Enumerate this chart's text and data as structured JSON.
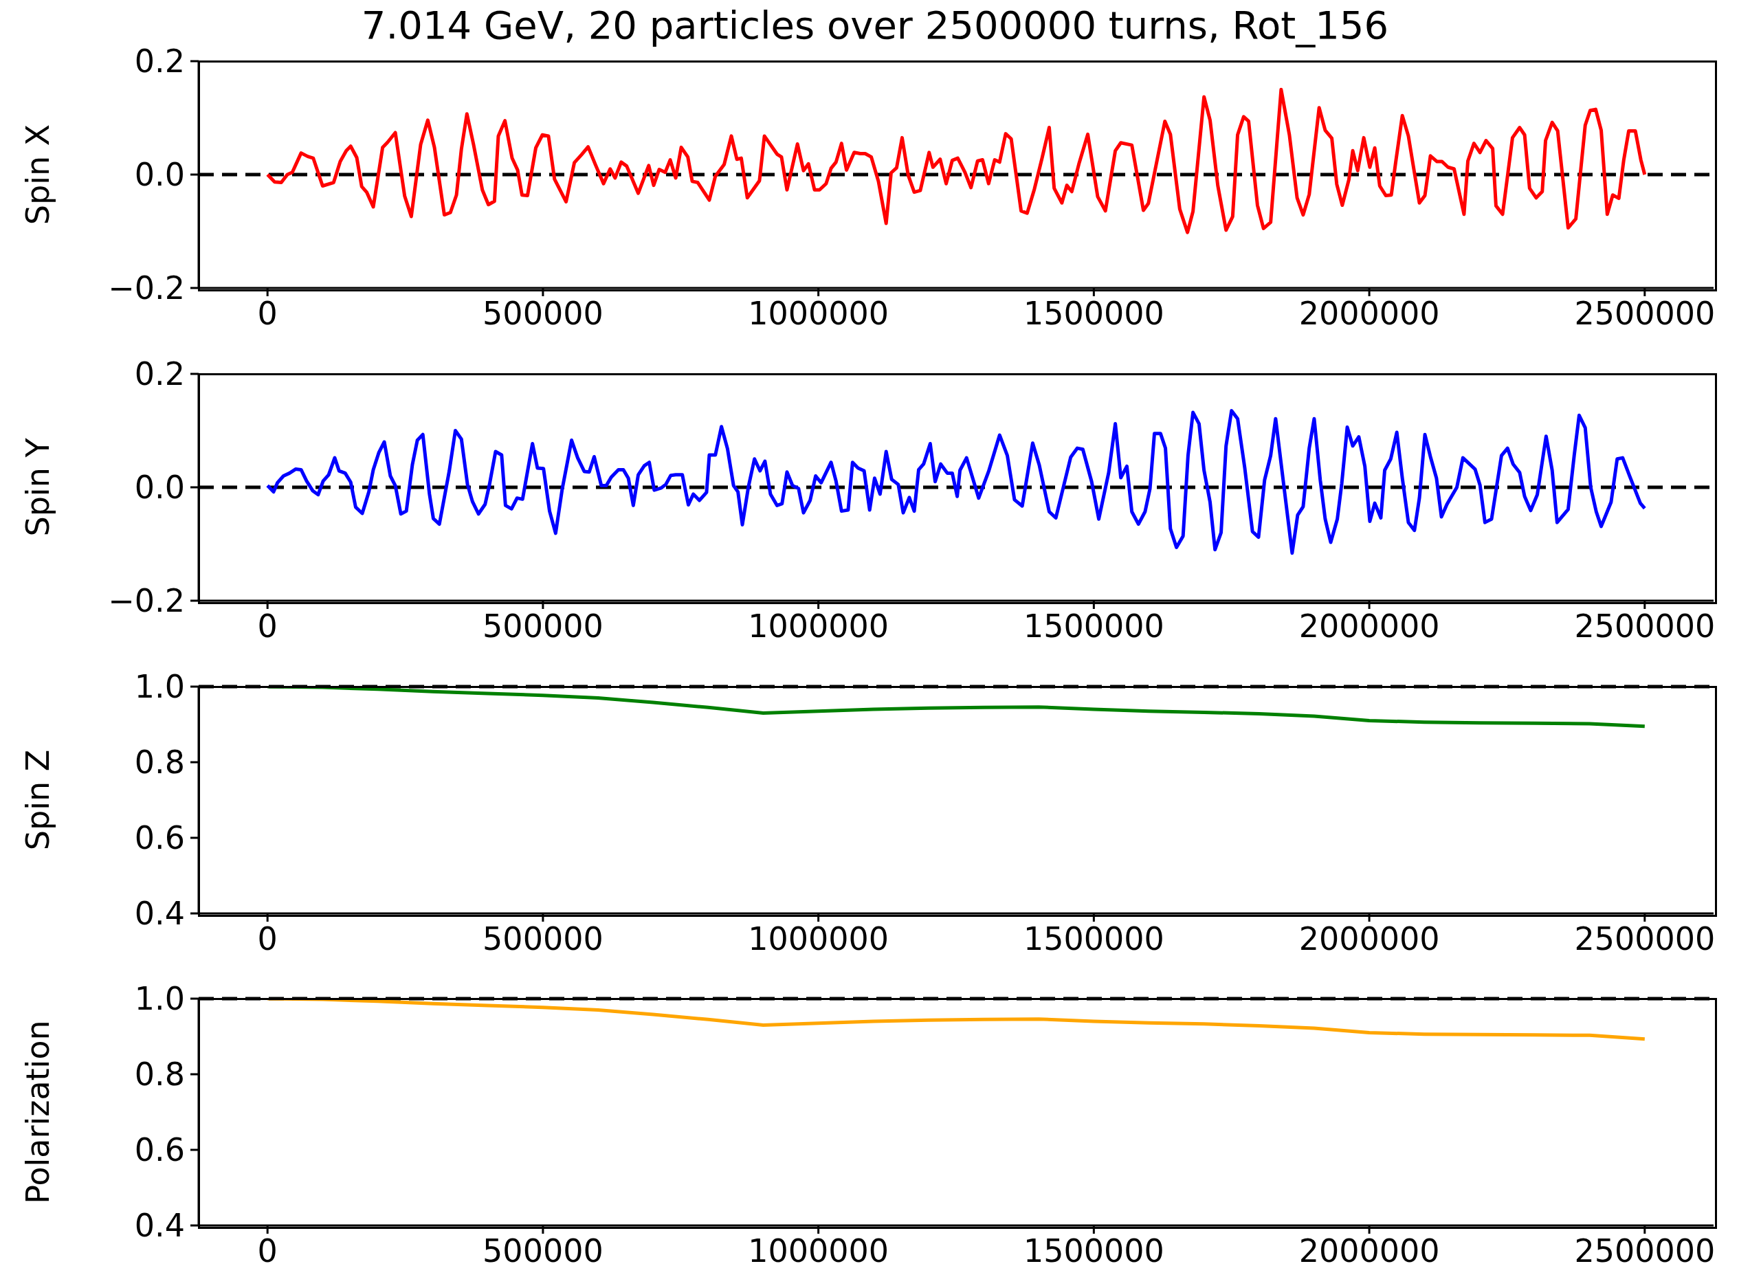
{
  "chart_data": [
    {
      "type": "line",
      "title": "7.014 GeV, 20 particles over 2500000 turns, Rot_156",
      "ylabel": "Spin X",
      "xlim": [
        -125000,
        2625000
      ],
      "xticks": [
        0,
        500000,
        1000000,
        1500000,
        2000000,
        2500000
      ],
      "ylim": [
        -0.2,
        0.2
      ],
      "yticks": [
        {
          "value": -0.2,
          "label": "−0.2"
        },
        {
          "value": 0,
          "label": "0.0"
        },
        {
          "value": 0.2,
          "label": "0.2"
        }
      ],
      "ref_lines": [
        {
          "axis": "y",
          "value": 0,
          "color": "#000000",
          "line_style": "dashed"
        }
      ],
      "series": [
        {
          "color": "#ff0000",
          "x": [
            0,
            13000,
            25000,
            36000,
            45000,
            61000,
            73000,
            83000,
            100000,
            120000,
            132000,
            143000,
            151000,
            162000,
            171000,
            180000,
            192000,
            209000,
            218000,
            232000,
            249000,
            261000,
            278000,
            291000,
            303000,
            321000,
            332000,
            343000,
            352000,
            362000,
            374000,
            390000,
            401000,
            412000,
            419000,
            431000,
            444000,
            454000,
            462000,
            472000,
            487000,
            499000,
            510000,
            521000,
            542000,
            557000,
            570000,
            582000,
            595000,
            610000,
            622000,
            631000,
            642000,
            652000,
            673000,
            692000,
            701000,
            711000,
            722000,
            731000,
            741000,
            751000,
            763000,
            771000,
            781000,
            802000,
            813000,
            829000,
            842000,
            852000,
            860000,
            871000,
            893000,
            902000,
            925000,
            933000,
            943000,
            962000,
            973000,
            982000,
            993000,
            1002000,
            1014000,
            1023000,
            1032000,
            1042000,
            1051000,
            1065000,
            1076000,
            1085000,
            1096000,
            1109000,
            1123000,
            1132000,
            1142000,
            1152000,
            1163000,
            1174000,
            1185000,
            1201000,
            1208000,
            1221000,
            1232000,
            1243000,
            1253000,
            1266000,
            1277000,
            1289000,
            1298000,
            1309000,
            1320000,
            1329000,
            1340000,
            1350000,
            1368000,
            1379000,
            1392000,
            1406000,
            1419000,
            1428000,
            1442000,
            1451000,
            1460000,
            1473000,
            1489000,
            1507000,
            1521000,
            1539000,
            1549000,
            1569000,
            1590000,
            1599000,
            1629000,
            1639000,
            1656000,
            1670000,
            1680000,
            1700000,
            1711000,
            1725000,
            1740000,
            1752000,
            1761000,
            1772000,
            1781000,
            1797000,
            1808000,
            1821000,
            1840000,
            1855000,
            1869000,
            1880000,
            1891000,
            1909000,
            1920000,
            1932000,
            1941000,
            1951000,
            1963000,
            1970000,
            1979000,
            1990000,
            2001000,
            2010000,
            2019000,
            2030000,
            2040000,
            2048000,
            2060000,
            2071000,
            2091000,
            2101000,
            2111000,
            2123000,
            2132000,
            2143000,
            2154000,
            2172000,
            2179000,
            2190000,
            2201000,
            2212000,
            2224000,
            2230000,
            2242000,
            2260000,
            2273000,
            2282000,
            2291000,
            2303000,
            2314000,
            2320000,
            2332000,
            2342000,
            2361000,
            2375000,
            2392000,
            2401000,
            2411000,
            2421000,
            2432000,
            2442000,
            2453000,
            2462000,
            2471000,
            2483000,
            2493000,
            2500000
          ],
          "values": [
            0,
            -0.013,
            -0.014,
            0,
            0.004,
            0.038,
            0.032,
            0.029,
            -0.02,
            -0.014,
            0.023,
            0.042,
            0.05,
            0.03,
            -0.021,
            -0.031,
            -0.057,
            0.048,
            0.057,
            0.074,
            -0.038,
            -0.074,
            0.053,
            0.096,
            0.048,
            -0.071,
            -0.067,
            -0.036,
            0.045,
            0.107,
            0.053,
            -0.027,
            -0.053,
            -0.047,
            0.068,
            0.095,
            0.029,
            0.008,
            -0.036,
            -0.037,
            0.047,
            0.07,
            0.068,
            -0.008,
            -0.048,
            0.021,
            0.035,
            0.049,
            0.018,
            -0.016,
            0.01,
            -0.006,
            0.022,
            0.015,
            -0.033,
            0.016,
            -0.019,
            0.009,
            0.004,
            0.026,
            -0.006,
            0.048,
            0.031,
            -0.012,
            -0.014,
            -0.045,
            -0.003,
            0.018,
            0.068,
            0.027,
            0.029,
            -0.041,
            -0.011,
            0.068,
            0.036,
            0.031,
            -0.027,
            0.054,
            0.007,
            0.019,
            -0.027,
            -0.027,
            -0.016,
            0.011,
            0.022,
            0.055,
            0.008,
            0.039,
            0.037,
            0.037,
            0.031,
            -0.012,
            -0.086,
            0.003,
            0.012,
            0.065,
            -0.001,
            -0.031,
            -0.028,
            0.039,
            0.013,
            0.027,
            -0.016,
            0.025,
            0.029,
            0.004,
            -0.023,
            0.024,
            0.026,
            -0.016,
            0.026,
            0.022,
            0.072,
            0.063,
            -0.064,
            -0.068,
            -0.026,
            0.029,
            0.083,
            -0.024,
            -0.05,
            -0.019,
            -0.03,
            0.019,
            0.071,
            -0.039,
            -0.064,
            0.042,
            0.056,
            0.052,
            -0.063,
            -0.051,
            0.094,
            0.071,
            -0.061,
            -0.102,
            -0.065,
            0.137,
            0.096,
            -0.019,
            -0.098,
            -0.074,
            0.07,
            0.102,
            0.094,
            -0.054,
            -0.095,
            -0.084,
            0.15,
            0.07,
            -0.041,
            -0.071,
            -0.035,
            0.118,
            0.078,
            0.064,
            -0.017,
            -0.054,
            -0.009,
            0.042,
            0.007,
            0.065,
            0.013,
            0.047,
            -0.02,
            -0.037,
            -0.036,
            0.022,
            0.104,
            0.068,
            -0.05,
            -0.037,
            0.033,
            0.023,
            0.023,
            0.013,
            0.01,
            -0.07,
            0.024,
            0.055,
            0.039,
            0.06,
            0.046,
            -0.055,
            -0.07,
            0.065,
            0.083,
            0.07,
            -0.024,
            -0.041,
            -0.03,
            0.06,
            0.092,
            0.077,
            -0.094,
            -0.078,
            0.087,
            0.113,
            0.115,
            0.078,
            -0.07,
            -0.036,
            -0.042,
            0.026,
            0.077,
            0.077,
            0.026,
            0
          ]
        }
      ]
    },
    {
      "type": "line",
      "ylabel": "Spin Y",
      "xlim": [
        -125000,
        2625000
      ],
      "xticks": [
        0,
        500000,
        1000000,
        1500000,
        2000000,
        2500000
      ],
      "ylim": [
        -0.2,
        0.2
      ],
      "yticks": [
        {
          "value": -0.2,
          "label": "−0.2"
        },
        {
          "value": 0,
          "label": "0.0"
        },
        {
          "value": 0.2,
          "label": "0.2"
        }
      ],
      "ref_lines": [
        {
          "axis": "y",
          "value": 0,
          "color": "#000000",
          "line_style": "dashed"
        }
      ],
      "series": [
        {
          "color": "#0000ff",
          "x": [
            0,
            11000,
            18000,
            29000,
            40000,
            51000,
            61000,
            71000,
            82000,
            92000,
            101000,
            111000,
            122000,
            130000,
            141000,
            151000,
            160000,
            172000,
            184000,
            192000,
            202000,
            212000,
            223000,
            232000,
            242000,
            252000,
            263000,
            272000,
            282000,
            294000,
            301000,
            312000,
            330000,
            341000,
            352000,
            363000,
            372000,
            383000,
            395000,
            403000,
            414000,
            425000,
            432000,
            443000,
            453000,
            463000,
            481000,
            490000,
            501000,
            512000,
            523000,
            535000,
            552000,
            563000,
            575000,
            584000,
            593000,
            606000,
            615000,
            624000,
            637000,
            646000,
            655000,
            664000,
            673000,
            684000,
            693000,
            702000,
            715000,
            723000,
            732000,
            741000,
            753000,
            764000,
            773000,
            784000,
            797000,
            802000,
            813000,
            824000,
            835000,
            846000,
            854000,
            862000,
            873000,
            884000,
            894000,
            903000,
            913000,
            925000,
            934000,
            943000,
            953000,
            964000,
            973000,
            985000,
            995000,
            1005000,
            1023000,
            1032000,
            1042000,
            1054000,
            1062000,
            1072000,
            1083000,
            1093000,
            1102000,
            1112000,
            1123000,
            1133000,
            1145000,
            1154000,
            1165000,
            1174000,
            1182000,
            1191000,
            1203000,
            1212000,
            1222000,
            1234000,
            1243000,
            1252000,
            1257000,
            1269000,
            1291000,
            1309000,
            1329000,
            1343000,
            1356000,
            1370000,
            1389000,
            1401000,
            1419000,
            1431000,
            1458000,
            1470000,
            1480000,
            1496000,
            1509000,
            1527000,
            1539000,
            1549000,
            1560000,
            1569000,
            1581000,
            1593000,
            1602000,
            1610000,
            1621000,
            1630000,
            1639000,
            1650000,
            1662000,
            1671000,
            1680000,
            1691000,
            1700000,
            1711000,
            1720000,
            1731000,
            1740000,
            1750000,
            1761000,
            1774000,
            1788000,
            1799000,
            1810000,
            1821000,
            1830000,
            1844000,
            1860000,
            1870000,
            1880000,
            1891000,
            1900000,
            1911000,
            1920000,
            1930000,
            1942000,
            1950000,
            1960000,
            1970000,
            1981000,
            1992000,
            2001000,
            2010000,
            2021000,
            2028000,
            2039000,
            2050000,
            2060000,
            2071000,
            2082000,
            2091000,
            2101000,
            2111000,
            2122000,
            2131000,
            2141000,
            2159000,
            2170000,
            2192000,
            2201000,
            2210000,
            2222000,
            2240000,
            2251000,
            2261000,
            2273000,
            2282000,
            2293000,
            2305000,
            2321000,
            2332000,
            2341000,
            2361000,
            2372000,
            2381000,
            2392000,
            2402000,
            2412000,
            2421000,
            2439000,
            2450000,
            2460000,
            2473000,
            2492000,
            2500000
          ],
          "values": [
            0.003,
            -0.008,
            0.008,
            0.02,
            0.025,
            0.032,
            0.031,
            0.011,
            -0.006,
            -0.013,
            0.011,
            0.022,
            0.052,
            0.029,
            0.025,
            0.009,
            -0.035,
            -0.046,
            -0.008,
            0.031,
            0.061,
            0.08,
            0.02,
            0.003,
            -0.047,
            -0.042,
            0.04,
            0.083,
            0.093,
            -0.012,
            -0.055,
            -0.065,
            0.029,
            0.1,
            0.085,
            0.005,
            -0.025,
            -0.047,
            -0.03,
            0.005,
            0.063,
            0.057,
            -0.032,
            -0.038,
            -0.019,
            -0.021,
            0.077,
            0.034,
            0.033,
            -0.042,
            -0.081,
            -0.003,
            0.083,
            0.052,
            0.028,
            0.027,
            0.054,
            0.003,
            0.003,
            0.018,
            0.031,
            0.031,
            0.016,
            -0.032,
            0.022,
            0.038,
            0.044,
            -0.005,
            -0.001,
            0.005,
            0.021,
            0.022,
            0.022,
            -0.031,
            -0.012,
            -0.023,
            -0.009,
            0.057,
            0.057,
            0.107,
            0.068,
            0.003,
            -0.008,
            -0.066,
            0.001,
            0.05,
            0.029,
            0.046,
            -0.012,
            -0.032,
            -0.029,
            0.027,
            0.003,
            -0.002,
            -0.045,
            -0.023,
            0.02,
            0.008,
            0.044,
            0.011,
            -0.042,
            -0.04,
            0.044,
            0.034,
            0.029,
            -0.04,
            0.016,
            -0.012,
            0.063,
            0.014,
            0.005,
            -0.045,
            -0.018,
            -0.042,
            0.031,
            0.041,
            0.077,
            0.01,
            0.041,
            0.025,
            0.025,
            -0.016,
            0.03,
            0.052,
            -0.019,
            0.028,
            0.092,
            0.056,
            -0.022,
            -0.033,
            0.078,
            0.039,
            -0.043,
            -0.054,
            0.053,
            0.069,
            0.067,
            0.01,
            -0.056,
            0.026,
            0.112,
            0.017,
            0.037,
            -0.043,
            -0.065,
            -0.043,
            -0.002,
            0.095,
            0.095,
            0.069,
            -0.073,
            -0.106,
            -0.086,
            0.056,
            0.132,
            0.112,
            0.03,
            -0.026,
            -0.11,
            -0.08,
            0.073,
            0.135,
            0.121,
            0.034,
            -0.078,
            -0.088,
            0.013,
            0.056,
            0.121,
            0.01,
            -0.116,
            -0.049,
            -0.034,
            0.069,
            0.121,
            0.013,
            -0.056,
            -0.097,
            -0.056,
            0.006,
            0.106,
            0.073,
            0.089,
            0.037,
            -0.06,
            -0.028,
            -0.054,
            0.03,
            0.05,
            0.097,
            0.016,
            -0.062,
            -0.076,
            -0.019,
            0.093,
            0.054,
            0.016,
            -0.052,
            -0.03,
            0,
            0.052,
            0.032,
            0.004,
            -0.062,
            -0.056,
            0.056,
            0.069,
            0.041,
            0.026,
            -0.016,
            -0.041,
            -0.013,
            0.09,
            0.03,
            -0.062,
            -0.039,
            0.056,
            0.127,
            0.105,
            0,
            -0.043,
            -0.069,
            -0.026,
            0.05,
            0.052,
            0.019,
            -0.028,
            -0.037
          ]
        }
      ]
    },
    {
      "type": "line",
      "ylabel": "Spin Z",
      "xlim": [
        -125000,
        2625000
      ],
      "xticks": [
        0,
        500000,
        1000000,
        1500000,
        2000000,
        2500000
      ],
      "ylim": [
        0.4,
        1.0
      ],
      "yticks": [
        {
          "value": 0.4,
          "label": "0.4"
        },
        {
          "value": 0.6,
          "label": "0.6"
        },
        {
          "value": 0.8,
          "label": "0.8"
        },
        {
          "value": 1.0,
          "label": "1.0"
        }
      ],
      "ref_lines": [
        {
          "axis": "y",
          "value": 1.0,
          "color": "#000000",
          "line_style": "dashed"
        }
      ],
      "series": [
        {
          "color": "#008000",
          "x": [
            0,
            100000,
            200000,
            300000,
            400000,
            500000,
            600000,
            700000,
            800000,
            900000,
            1000000,
            1100000,
            1200000,
            1300000,
            1400000,
            1500000,
            1600000,
            1700000,
            1800000,
            1900000,
            2000000,
            2100000,
            2200000,
            2300000,
            2400000,
            2500000
          ],
          "values": [
            1.0,
            0.998,
            0.993,
            0.987,
            0.982,
            0.977,
            0.97,
            0.958,
            0.945,
            0.93,
            0.935,
            0.94,
            0.943,
            0.945,
            0.946,
            0.94,
            0.935,
            0.932,
            0.928,
            0.922,
            0.91,
            0.906,
            0.904,
            0.903,
            0.902,
            0.895
          ]
        }
      ]
    },
    {
      "type": "line",
      "ylabel": "Polarization",
      "xlim": [
        -125000,
        2625000
      ],
      "xticks": [
        0,
        500000,
        1000000,
        1500000,
        2000000,
        2500000
      ],
      "ylim": [
        0.4,
        1.0
      ],
      "yticks": [
        {
          "value": 0.4,
          "label": "0.4"
        },
        {
          "value": 0.6,
          "label": "0.6"
        },
        {
          "value": 0.8,
          "label": "0.8"
        },
        {
          "value": 1.0,
          "label": "1.0"
        }
      ],
      "ref_lines": [
        {
          "axis": "y",
          "value": 1.0,
          "color": "#000000",
          "line_style": "dashed"
        }
      ],
      "series": [
        {
          "color": "#ffa500",
          "x": [
            0,
            100000,
            200000,
            300000,
            400000,
            500000,
            600000,
            700000,
            800000,
            900000,
            1000000,
            1100000,
            1200000,
            1300000,
            1400000,
            1500000,
            1600000,
            1700000,
            1800000,
            1900000,
            2000000,
            2100000,
            2200000,
            2300000,
            2400000,
            2500000
          ],
          "values": [
            1.0,
            0.998,
            0.993,
            0.987,
            0.982,
            0.977,
            0.97,
            0.958,
            0.945,
            0.93,
            0.935,
            0.94,
            0.943,
            0.945,
            0.946,
            0.94,
            0.936,
            0.933,
            0.928,
            0.922,
            0.91,
            0.906,
            0.905,
            0.904,
            0.903,
            0.893
          ]
        }
      ]
    }
  ]
}
